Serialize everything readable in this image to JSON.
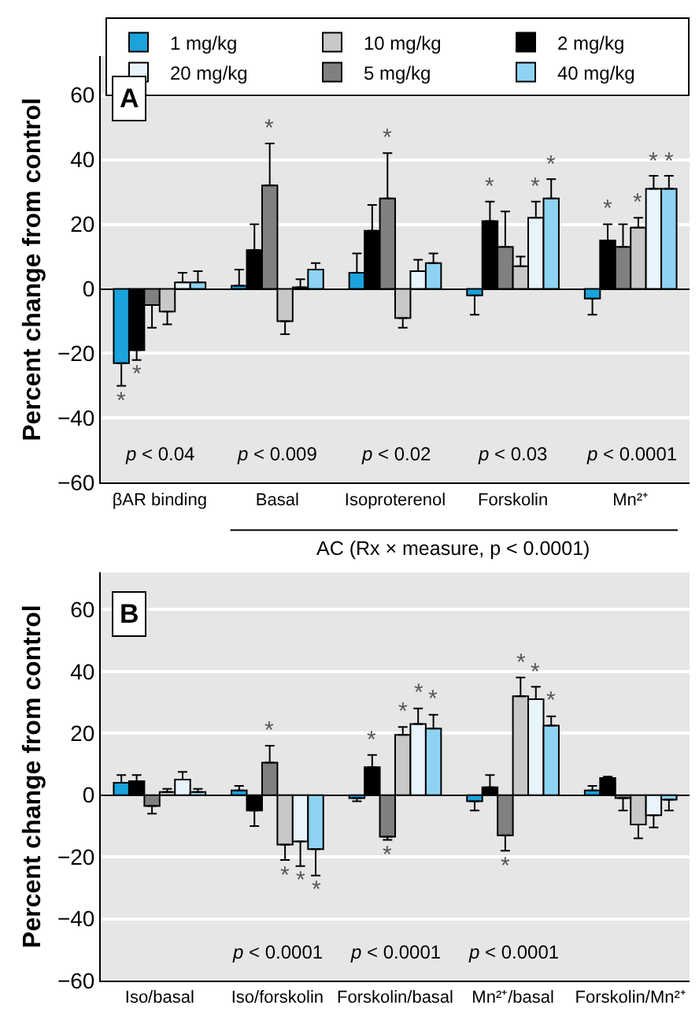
{
  "chart_data": [
    {
      "type": "bar",
      "categories": [
        "βAR binding",
        "Basal",
        "Isoproterenol",
        "Forskolin",
        "Mn²⁺"
      ],
      "ylabel": "Percent change from control",
      "ylim": [
        -60,
        72
      ],
      "yticks": [
        {
          "value": -60,
          "label": "−60"
        },
        {
          "value": -40,
          "label": "−40"
        },
        {
          "value": -20,
          "label": "−20"
        },
        0,
        20,
        40,
        60
      ],
      "grid": "y",
      "legend": "top right",
      "series": [
        {
          "name": "1 mg/kg",
          "color": "#1aa3dc",
          "values": [
            -23,
            1,
            5,
            -2,
            -3
          ],
          "errors": [
            [
              -30,
              -23
            ],
            [
              1,
              6
            ],
            [
              5,
              11
            ],
            [
              -8,
              -2
            ],
            [
              -8,
              -3
            ]
          ],
          "value_labels": [
            "*",
            null,
            null,
            null,
            null
          ]
        },
        {
          "name": "2 mg/kg",
          "color": "#000000",
          "values": [
            -19,
            12,
            18,
            21,
            15
          ],
          "errors": [
            [
              -22,
              -19
            ],
            [
              12,
              20
            ],
            [
              18,
              26
            ],
            [
              21,
              27
            ],
            [
              15,
              20
            ]
          ],
          "value_labels": [
            "*",
            null,
            null,
            "*",
            "*"
          ]
        },
        {
          "name": "5 mg/kg",
          "color": "#808080",
          "values": [
            -5,
            32,
            28,
            13,
            13
          ],
          "errors": [
            [
              -12,
              -5
            ],
            [
              32,
              45
            ],
            [
              28,
              42
            ],
            [
              13,
              24
            ],
            [
              13,
              20
            ]
          ],
          "value_labels": [
            null,
            "*",
            "*",
            null,
            null
          ]
        },
        {
          "name": "10 mg/kg",
          "color": "#c8c8c8",
          "values": [
            -7,
            -10,
            -9,
            7,
            19
          ],
          "errors": [
            [
              -11,
              -7
            ],
            [
              -14,
              -10
            ],
            [
              -12,
              -9
            ],
            [
              7,
              10
            ],
            [
              19,
              22
            ]
          ],
          "value_labels": [
            null,
            null,
            null,
            null,
            "*"
          ]
        },
        {
          "name": "20 mg/kg",
          "color": "#e8f4fb",
          "values": [
            2,
            0.5,
            5.5,
            22,
            31
          ],
          "errors": [
            [
              2,
              5
            ],
            [
              0.5,
              3
            ],
            [
              5.5,
              9
            ],
            [
              22,
              27
            ],
            [
              31,
              35
            ]
          ],
          "value_labels": [
            null,
            null,
            null,
            "*",
            "*"
          ]
        },
        {
          "name": "40 mg/kg",
          "color": "#8fd3f2",
          "values": [
            2,
            6,
            8,
            28,
            31
          ],
          "errors": [
            [
              2,
              5.5
            ],
            [
              6,
              8
            ],
            [
              8,
              11
            ],
            [
              28,
              34
            ],
            [
              31,
              35
            ]
          ],
          "value_labels": [
            null,
            null,
            null,
            "*",
            "*"
          ]
        }
      ],
      "annotations": [
        "A",
        "p < 0.04",
        "p < 0.009",
        "p < 0.02",
        "p < 0.03",
        "p < 0.0001",
        "AC (Rx × measure, p < 0.0001)"
      ]
    },
    {
      "type": "bar",
      "categories": [
        "Iso/basal",
        "Iso/forskolin",
        "Forskolin/basal",
        "Mn²⁺/basal",
        "Forskolin/Mn²⁺"
      ],
      "ylabel": "Percent change from control",
      "ylim": [
        -60,
        72
      ],
      "yticks": [
        {
          "value": -60,
          "label": "−60"
        },
        {
          "value": -40,
          "label": "−40"
        },
        {
          "value": -20,
          "label": "−20"
        },
        0,
        20,
        40,
        60
      ],
      "grid": "y",
      "series": [
        {
          "color": "#1aa3dc",
          "values": [
            4,
            1.5,
            -1,
            -2,
            1.5
          ],
          "errors": [
            [
              4,
              6.5
            ],
            [
              1.5,
              3
            ],
            [
              -2,
              -1
            ],
            [
              -5,
              -2
            ],
            [
              1.5,
              3
            ]
          ],
          "value_labels": [
            null,
            null,
            null,
            null,
            null
          ]
        },
        {
          "color": "#000000",
          "values": [
            4.5,
            -5,
            9,
            2.5,
            5.5
          ],
          "errors": [
            [
              4.5,
              6.5
            ],
            [
              -10,
              -5
            ],
            [
              9,
              13
            ],
            [
              2.5,
              6.5
            ],
            [
              5.5,
              6
            ]
          ],
          "value_labels": [
            null,
            null,
            "*",
            null,
            null
          ]
        },
        {
          "color": "#808080",
          "values": [
            -3.5,
            10.5,
            -13.5,
            -13,
            -1
          ],
          "errors": [
            [
              -6,
              -3.5
            ],
            [
              10.5,
              16
            ],
            [
              -14.5,
              -13.5
            ],
            [
              -18,
              -13
            ],
            [
              -5,
              -1
            ]
          ],
          "value_labels": [
            null,
            "*",
            "*",
            "*",
            null
          ]
        },
        {
          "color": "#c8c8c8",
          "values": [
            1,
            -16,
            19.5,
            32,
            -9.5
          ],
          "errors": [
            [
              1,
              2
            ],
            [
              -21,
              -16
            ],
            [
              19.5,
              22
            ],
            [
              32,
              38
            ],
            [
              -14,
              -9.5
            ]
          ],
          "value_labels": [
            null,
            "*",
            "*",
            "*",
            null
          ]
        },
        {
          "color": "#e8f4fb",
          "values": [
            5,
            -15,
            23,
            31,
            -6.5
          ],
          "errors": [
            [
              5,
              7.5
            ],
            [
              -23,
              -15
            ],
            [
              23,
              28
            ],
            [
              31,
              35
            ],
            [
              -10.5,
              -6.5
            ]
          ],
          "value_labels": [
            null,
            "*",
            "*",
            "*",
            null
          ]
        },
        {
          "color": "#8fd3f2",
          "values": [
            1,
            -17.5,
            21.5,
            22.5,
            -1.5
          ],
          "errors": [
            [
              1,
              2
            ],
            [
              -26,
              -17.5
            ],
            [
              21.5,
              26
            ],
            [
              22.5,
              25.5
            ],
            [
              -5,
              -1.5
            ]
          ],
          "value_labels": [
            null,
            "*",
            "*",
            "*",
            null
          ]
        }
      ],
      "annotations": [
        "B",
        "p < 0.0001",
        "p < 0.0001",
        "p < 0.0001"
      ]
    }
  ]
}
